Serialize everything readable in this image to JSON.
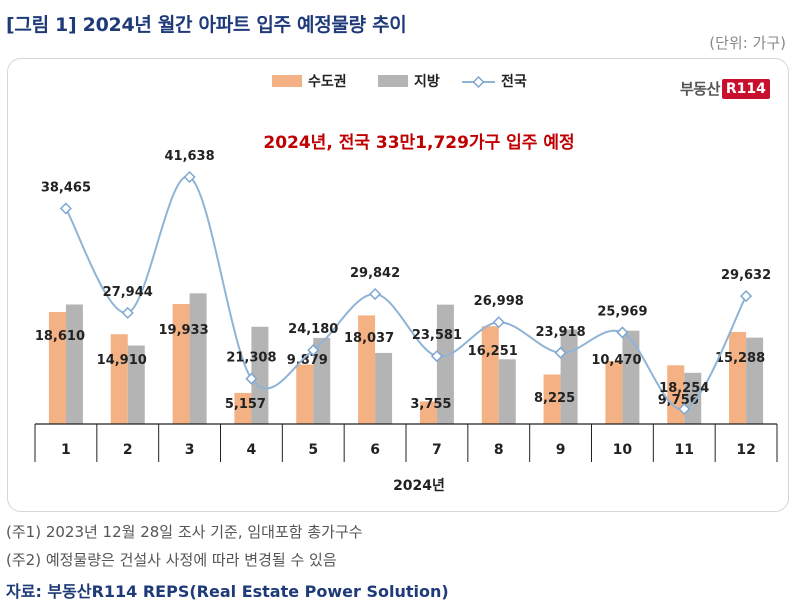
{
  "header": {
    "title": "[그림 1] 2024년 월간 아파트 입주 예정물량 추이",
    "unit": "(단위: 가구)"
  },
  "logo": {
    "text": "부동산",
    "badge": "R114"
  },
  "notes": {
    "note1": "(주1) 2023년 12월 28일 조사 기준, 임대포함 총가구수",
    "note2": "(주2) 예정물량은 건설사 사정에 따라 변경될 수 있음",
    "source": "자료: 부동산R114 REPS(Real Estate Power Solution)"
  },
  "chart_data": {
    "type": "bar",
    "annotation": "2024년, 전국 33만1,729가구 입주 예정",
    "xlabel": "2024년",
    "categories": [
      "1",
      "2",
      "3",
      "4",
      "5",
      "6",
      "7",
      "8",
      "9",
      "10",
      "11",
      "12"
    ],
    "series": [
      {
        "name": "수도권",
        "kind": "bar",
        "color": "#f4b183",
        "values": [
          18610,
          14910,
          19933,
          5157,
          9879,
          18037,
          3755,
          16251,
          8225,
          10470,
          9756,
          15288
        ]
      },
      {
        "name": "지방",
        "kind": "bar",
        "color": "#b4b4b4",
        "values": [
          19855,
          13034,
          21705,
          16151,
          14301,
          11805,
          19826,
          10747,
          15693,
          15499,
          8498,
          14344
        ]
      },
      {
        "name": "전국",
        "kind": "line",
        "color": "#8fb4d6",
        "values": [
          38465,
          27944,
          41638,
          21308,
          24180,
          29842,
          23581,
          26998,
          23918,
          25969,
          18254,
          29632
        ],
        "labels": [
          "38,465",
          "27,944",
          "41,638",
          "21,308",
          "24,180",
          "29,842",
          "23,581",
          "26,998",
          "23,918",
          "25,969",
          "18,254",
          "29,632"
        ]
      }
    ],
    "bar_labels": [
      "18,610",
      "14,910",
      "19,933",
      "5,157",
      "9,879",
      "18,037",
      "3,755",
      "16,251",
      "8,225",
      "10,470",
      "9,756",
      "15,288"
    ],
    "legend_position": "top-center",
    "grid": false
  }
}
